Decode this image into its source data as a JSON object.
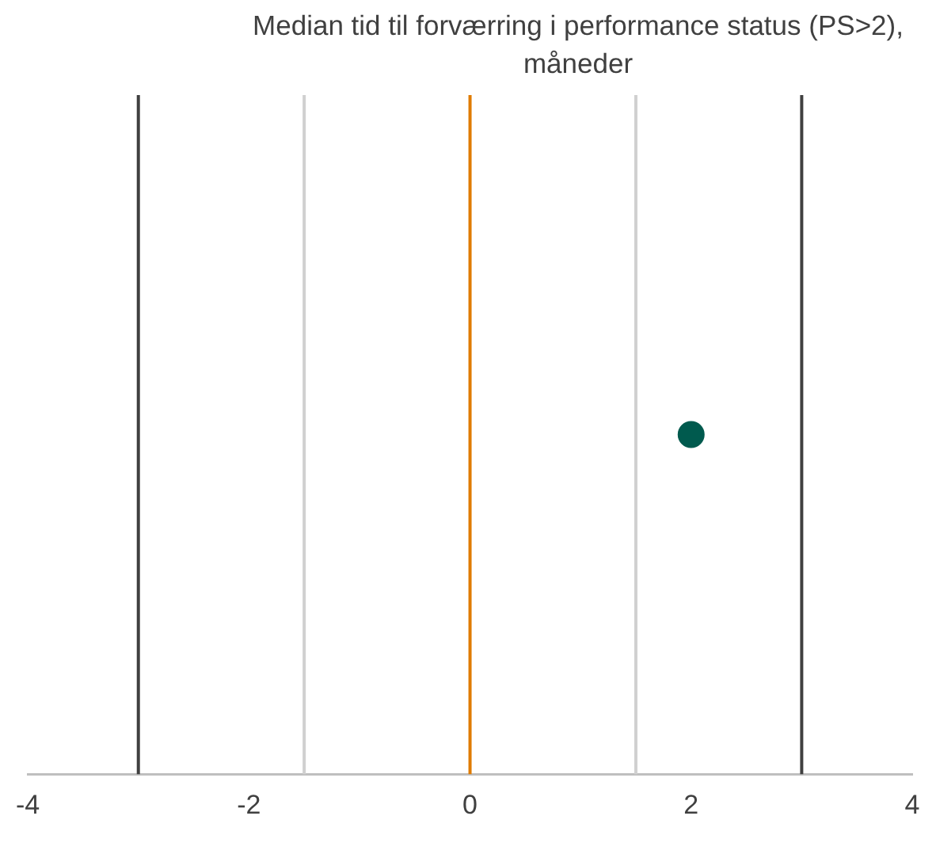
{
  "chart_data": {
    "type": "scatter",
    "title": "Median tid til forværring i performance status (PS>2), måneder",
    "orientation": "horizontal",
    "categories": [
      null
    ],
    "values": [
      2
    ],
    "color": "#005a4e",
    "marker": "circle",
    "xlim": [
      -4,
      4
    ],
    "xticks": [
      -4,
      -2,
      0,
      2,
      4
    ],
    "grid": false,
    "legend": false,
    "ref_lines": [
      {
        "axis": "x",
        "value": -3,
        "color": "#404040"
      },
      {
        "axis": "x",
        "value": -1.5,
        "color": "#d0d0d0"
      },
      {
        "axis": "x",
        "value": 0,
        "color": "#e07b00"
      },
      {
        "axis": "x",
        "value": 1.5,
        "color": "#d0d0d0"
      },
      {
        "axis": "x",
        "value": 3,
        "color": "#404040"
      }
    ]
  }
}
